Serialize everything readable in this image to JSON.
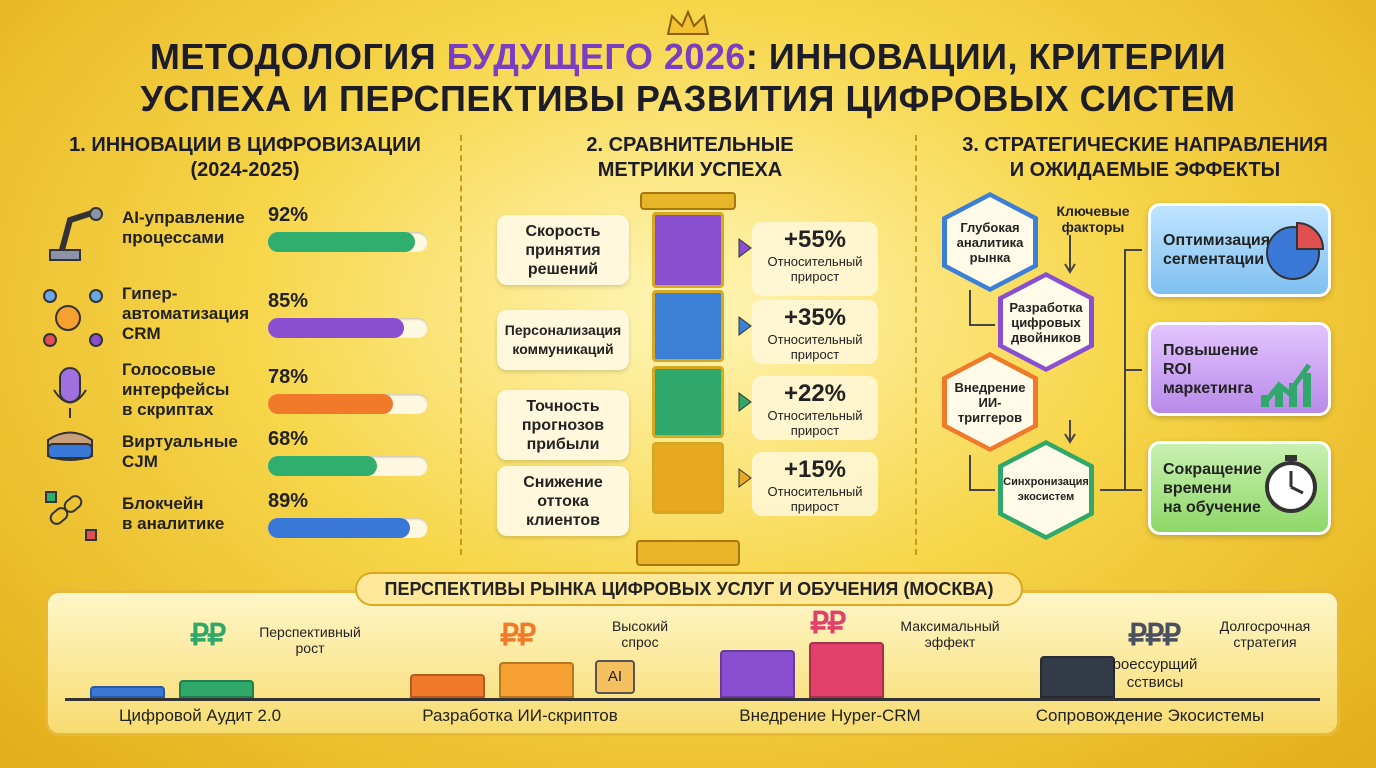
{
  "header": {
    "title_before": "МЕТОДОЛОГИЯ",
    "title_highlight": "БУДУЩЕГО 2026",
    "title_after": ": ИННОВАЦИИ, КРИТЕРИИ",
    "title_line2": "УСПЕХА И ПЕРСПЕКТИВЫ РАЗВИТИЯ ЦИФРОВЫХ СИСТЕМ"
  },
  "innovations": {
    "title": "1. ИННОВАЦИИ В ЦИФРОВИЗАЦИИ",
    "subtitle": "(2024-2025)",
    "items": [
      {
        "label": "AI-управление\nпроцессами",
        "value": 92,
        "value_label": "92%",
        "color": "#2fae6e"
      },
      {
        "label": "Гипер-\nавтоматизация\nCRM",
        "value": 85,
        "value_label": "85%",
        "color": "#8a4fd0"
      },
      {
        "label": "Голосовые\nинтерфейсы\nв скриптах",
        "value": 78,
        "value_label": "78%",
        "color": "#f07a2a"
      },
      {
        "label": "Виртуальные\nCJM",
        "value": 68,
        "value_label": "68%",
        "color": "#2fae6e"
      },
      {
        "label": "Блокчейн\nв аналитике",
        "value": 89,
        "value_label": "89%",
        "color": "#3a78d8"
      }
    ]
  },
  "metrics": {
    "title": "2. СРАВНИТЕЛЬНЫЕ\nМЕТРИКИ УСПЕХА",
    "items": [
      {
        "label": "Скорость\nпринятия\nрешений",
        "value_label": "+55%",
        "note": "Относительный\nприрост",
        "color": "#8a4fd0"
      },
      {
        "label": "Персонализация\nкоммуникаций",
        "value_label": "+35%",
        "note": "Относительный\nприрост",
        "color": "#3b7fd6"
      },
      {
        "label": "Точность\nпрогнозов\nприбыли",
        "value_label": "+22%",
        "note": "Относительный\nприрост",
        "color": "#2fa86a"
      },
      {
        "label": "Снижение\nоттока\nклиентов",
        "value_label": "+15%",
        "note": "Относительный\nприрост",
        "color": "#e8a820"
      }
    ]
  },
  "strategy": {
    "title": "3. СТРАТЕГИЧЕСКИЕ НАПРАВЛЕНИЯ\nИ ОЖИДАЕМЫЕ ЭФФЕКТЫ",
    "factors_label": "Ключевые\nфакторы",
    "factors": [
      "Глубокая\nаналитика\nрынка",
      "Разработка\nцифровых\nдвойников",
      "Внедрение\nИИ-триггеров",
      "Синхронизация\nэкосистем"
    ],
    "effects": [
      "Оптимизация\nсегментации",
      "Повышение\nROI\nмаркетинга",
      "Сокращение\nвремени\nна обучение"
    ]
  },
  "market": {
    "title": "ПЕРСПЕКТИВЫ РЫНКА ЦИФРОВЫХ УСЛУГ И ОБУЧЕНИЯ (МОСКВА)",
    "groups": [
      {
        "name": "Цифровой Аудит 2.0",
        "currency": "₽₽",
        "note": "Перспективный\nрост"
      },
      {
        "name": "Разработка ИИ-скриптов",
        "currency": "₽₽",
        "note": "Высокий\nспрос",
        "chip": "AI"
      },
      {
        "name": "Внедрение Hyper-CRM",
        "currency": "₽₽",
        "note": "Максимальный\nэффект"
      },
      {
        "name": "Сопровождение Экосистемы",
        "currency": "₽₽₽",
        "note": "Долгосрочная\nстратегия",
        "extra": "роессурщий\nсствисы"
      }
    ]
  }
}
